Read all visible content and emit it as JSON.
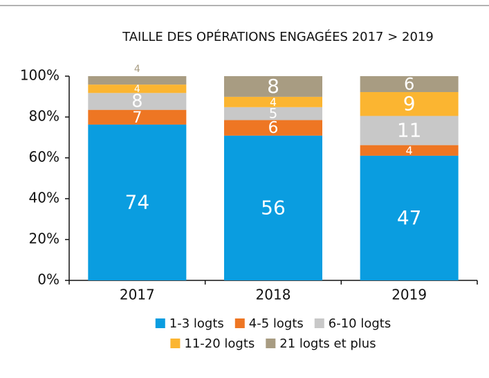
{
  "chart_data": {
    "type": "bar",
    "stacking": "percent",
    "title": "TAILLE DES OPÉRATIONS ENGAGÉES 2017 > 2019",
    "categories": [
      "2017",
      "2018",
      "2019"
    ],
    "series": [
      {
        "name": "1-3 logts",
        "color": "#0a9de0",
        "values": [
          74,
          56,
          47
        ]
      },
      {
        "name": "4-5 logts",
        "color": "#ee7623",
        "values": [
          7,
          6,
          4
        ]
      },
      {
        "name": "6-10 logts",
        "color": "#c8c8c8",
        "values": [
          8,
          5,
          11
        ]
      },
      {
        "name": "11-20 logts",
        "color": "#fbb531",
        "values": [
          4,
          4,
          9
        ]
      },
      {
        "name": "21 logts et plus",
        "color": "#a89c82",
        "values": [
          4,
          8,
          6
        ]
      }
    ],
    "ylim": [
      0,
      100
    ],
    "yticks": [
      {
        "value": 0,
        "label": "0%"
      },
      {
        "value": 20,
        "label": "20%"
      },
      {
        "value": 40,
        "label": "40%"
      },
      {
        "value": 60,
        "label": "60%"
      },
      {
        "value": 80,
        "label": "80%"
      },
      {
        "value": 100,
        "label": "100%"
      }
    ],
    "grid": false,
    "legend": "bottom"
  }
}
